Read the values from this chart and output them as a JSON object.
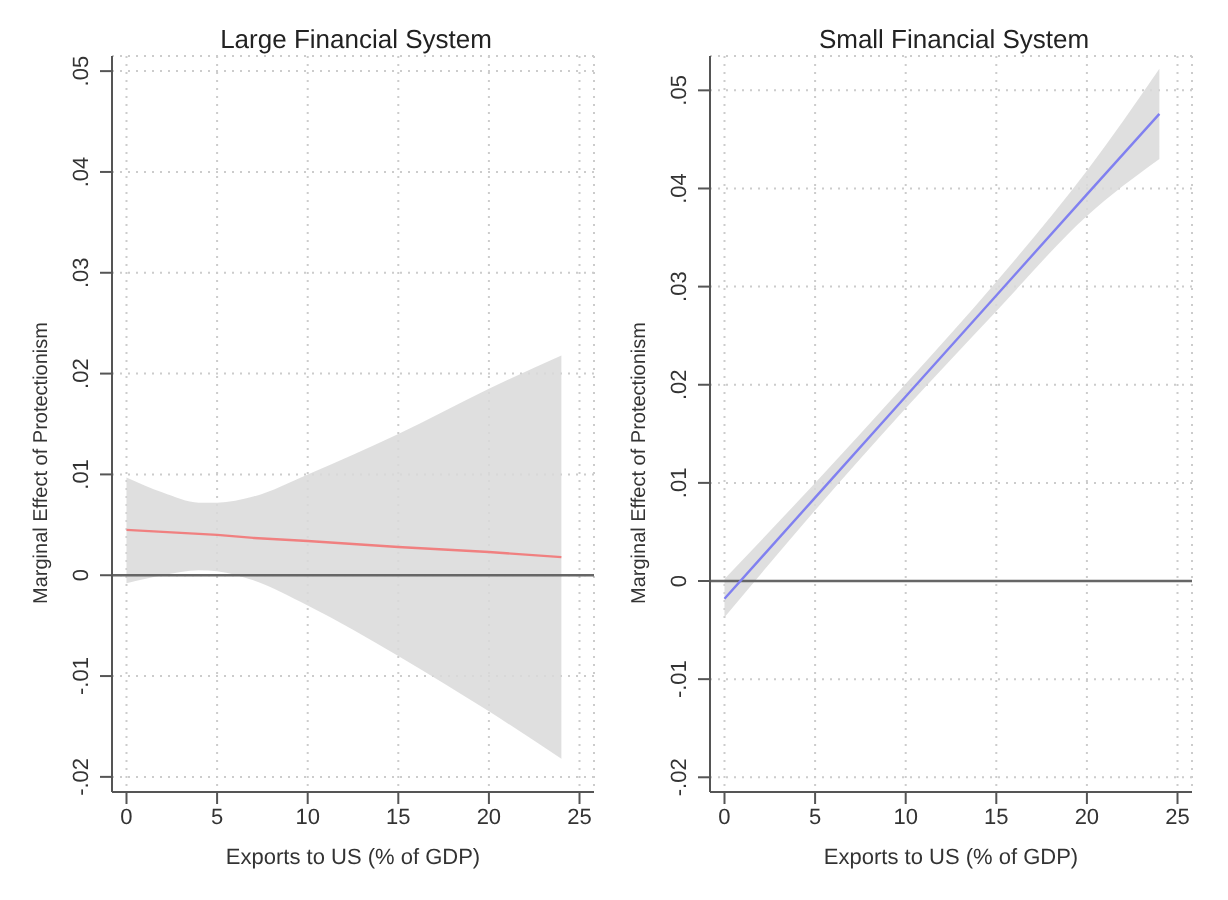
{
  "chart_data": [
    {
      "type": "line",
      "title": "Large Financial System",
      "xlabel": "Exports to US (% of GDP)",
      "ylabel": "Marginal Effect of Protectionism",
      "series": [
        {
          "color": "#f08080",
          "x": [
            0,
            2,
            4,
            5,
            7,
            10,
            15,
            20,
            24
          ],
          "values": [
            0.0045,
            0.0043,
            0.0041,
            0.004,
            0.0037,
            0.0034,
            0.0028,
            0.0023,
            0.0018
          ],
          "lower": [
            -0.0008,
            0.0,
            0.0005,
            0.0004,
            -0.0005,
            -0.003,
            -0.008,
            -0.0135,
            -0.0182
          ],
          "upper": [
            0.0097,
            0.0082,
            0.0072,
            0.0072,
            0.0078,
            0.01,
            0.014,
            0.0185,
            0.0218
          ]
        }
      ],
      "xlim": [
        -0.8,
        25.8
      ],
      "xticks": [
        0,
        5,
        10,
        15,
        20,
        25
      ],
      "ylim": [
        -0.0215,
        0.0515
      ],
      "yticks": [
        {
          "value": -0.02,
          "label": "-.02"
        },
        {
          "value": -0.01,
          "label": "-.01"
        },
        0,
        {
          "value": 0.01,
          "label": ".01"
        },
        {
          "value": 0.02,
          "label": ".02"
        },
        {
          "value": 0.03,
          "label": ".03"
        },
        {
          "value": 0.04,
          "label": ".04"
        },
        {
          "value": 0.05,
          "label": ".05"
        }
      ],
      "ref_lines": [
        {
          "axis": "y",
          "value": 0,
          "color": "#666666"
        }
      ],
      "grid": true,
      "legend": false,
      "marker": "none",
      "line_style": "solid"
    },
    {
      "type": "line",
      "title": "Small Financial System",
      "xlabel": "Exports to US (% of GDP)",
      "ylabel": "Marginal Effect of Protectionism",
      "series": [
        {
          "color": "#8080f0",
          "x": [
            0,
            5,
            10,
            15,
            20,
            24
          ],
          "values": [
            -0.0018,
            0.0085,
            0.0188,
            0.0291,
            0.0394,
            0.0476
          ],
          "lower": [
            -0.0037,
            0.0072,
            0.0176,
            0.0275,
            0.0372,
            0.043
          ],
          "upper": [
            0.0002,
            0.01,
            0.0201,
            0.0305,
            0.0418,
            0.0522
          ]
        }
      ],
      "xlim": [
        -0.8,
        25.8
      ],
      "xticks": [
        0,
        5,
        10,
        15,
        20,
        25
      ],
      "ylim": [
        -0.0215,
        0.0535
      ],
      "yticks": [
        {
          "value": -0.02,
          "label": "-.02"
        },
        {
          "value": -0.01,
          "label": "-.01"
        },
        0,
        {
          "value": 0.01,
          "label": ".01"
        },
        {
          "value": 0.02,
          "label": ".02"
        },
        {
          "value": 0.03,
          "label": ".03"
        },
        {
          "value": 0.04,
          "label": ".04"
        },
        {
          "value": 0.05,
          "label": ".05"
        }
      ],
      "ref_lines": [
        {
          "axis": "y",
          "value": 0,
          "color": "#666666"
        }
      ],
      "grid": true,
      "legend": false,
      "marker": "none",
      "line_style": "solid"
    }
  ]
}
